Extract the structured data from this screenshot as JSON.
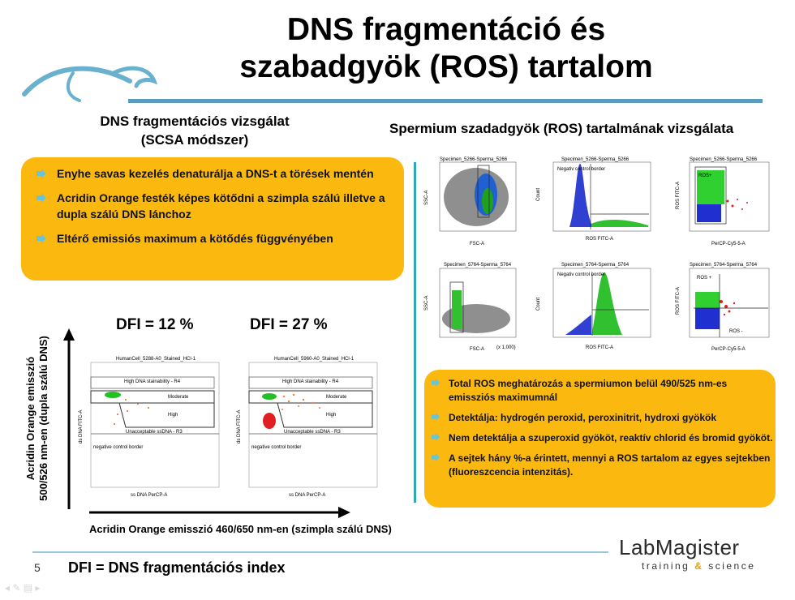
{
  "slide": {
    "title_line1": "DNS fragmentáció és",
    "title_line2": "szabadgyök (ROS) tartalom",
    "left_section_title_1": "DNS fragmentációs vizsgálat",
    "left_section_title_2": "(SCSA módszer)",
    "right_section_title": "Spermium szadadgyök (ROS) tartalmának vizsgálata",
    "left_bullets": [
      "Enyhe savas kezelés denaturálja a DNS-t a törések mentén",
      "Acridin Orange festék képes kötődni a  szimpla szálú illetve a dupla szálú DNS lánchoz",
      "Eltérő emissiós maximum a kötődés függvényében"
    ],
    "right_bullets": [
      "Total ROS meghatározás a spermiumon belül 490/525 nm-es emissziós maximumnál",
      "Detektálja: hydrogén peroxid, peroxinitrit, hydroxi  gyökök",
      "Nem detektálja a szuperoxid gyököt, reaktív chlorid és bromid gyököt.",
      "A sejtek hány %-a érintett, mennyi a ROS tartalom az egyes sejtekben (fluoreszcencia intenzitás)."
    ],
    "dfi_1": "DFI = 12 %",
    "dfi_2": "DFI = 27 %",
    "y_axis_label_1": "Acridin Orange emisszió",
    "y_axis_label_2": "500/526 nm-en (dupla szálú DNS)",
    "x_axis_label": "Acridin Orange emisszió 460/650 nm-en (szimpla szálú DNS)",
    "page_number": "5",
    "footer_text": "DFI = DNS fragmentációs index",
    "logo_main": "LabMagister",
    "logo_sub_1": "training",
    "logo_sub_amp": "&",
    "logo_sub_2": "science",
    "dfi_plot_labels": {
      "title_1": "HumanCell_5288-A0_Stained_HCl-1",
      "title_2": "HumanCell_5960-A0_Stained_HCl-1",
      "high_stain": "High DNA stainability - R4",
      "moderate": "Moderate",
      "high": "High",
      "unacceptable": "Unacceptable ssDNA - R3",
      "neg_border": "negative control border",
      "x_axis": "ss DNA PerCP-A",
      "y_axis": "ds DNA FITC-A"
    },
    "flow_plots": {
      "row1": [
        "Specimen_5266-Sperma_5266",
        "Specimen_5266-Sperma_5266",
        "Specimen_5266-Sperma_5266"
      ],
      "row2": [
        "Specimen_5764-Sperma_5764",
        "Specimen_5764-Sperma_5764",
        "Specimen_5764-Sperma_5764"
      ],
      "x_labels": [
        "FSC-A",
        "ROS FITC-A",
        "PerCP-Cy5-5-A"
      ],
      "y_labels": [
        "SSC-A",
        "Count",
        "ROS FITC-A"
      ],
      "neg_control": "Negativ control border",
      "ros_plus": "ROS+",
      "ros_plus_2": "ROS +",
      "ros_minus": "ROS -",
      "x_scale": "(x 1,000)"
    },
    "colors": {
      "accent_blue": "#5a9cc0",
      "box_orange": "#fbb90f",
      "arrow": "#6bc3d8"
    }
  }
}
